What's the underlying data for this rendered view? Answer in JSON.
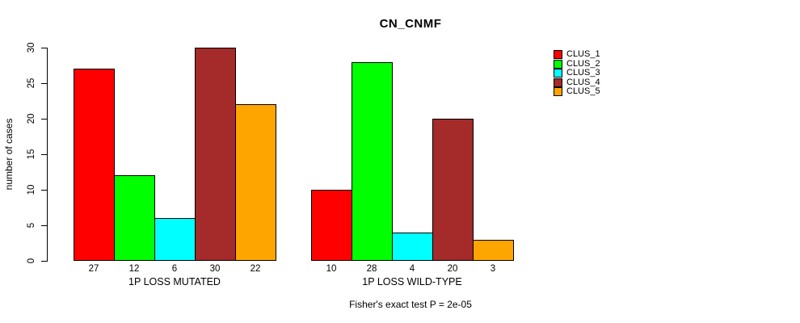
{
  "chart_data": {
    "type": "bar",
    "title": "CN_CNMF",
    "ylabel": "number of cases",
    "xlabel": "",
    "ylim": [
      0,
      30
    ],
    "yticks": [
      0,
      5,
      10,
      15,
      20,
      25,
      30
    ],
    "grid": false,
    "legend_position": "top-right",
    "clusters": [
      "CLUS_1",
      "CLUS_2",
      "CLUS_3",
      "CLUS_4",
      "CLUS_5"
    ],
    "colors": [
      "#ff0000",
      "#00ff00",
      "#00ffff",
      "#a52a2a",
      "#ffa500"
    ],
    "groups": [
      {
        "label": "1P LOSS MUTATED",
        "values": [
          27,
          12,
          6,
          30,
          22
        ]
      },
      {
        "label": "1P LOSS WILD-TYPE",
        "values": [
          10,
          28,
          4,
          20,
          3
        ]
      }
    ],
    "footnote": "Fisher's exact test P = 2e-05"
  }
}
